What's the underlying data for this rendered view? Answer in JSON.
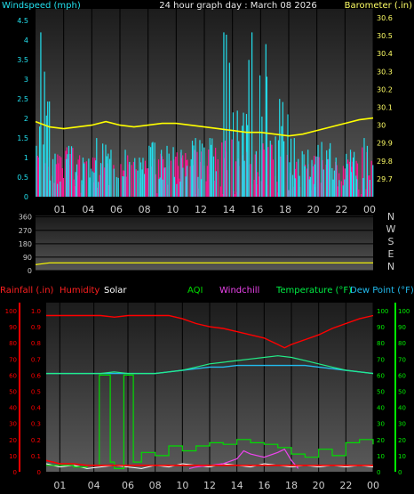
{
  "colors": {
    "background": "#000000",
    "axis": "#cccccc",
    "windspeed": "#22e0ee",
    "gust": "#ff1493",
    "barometer": "#ffff00",
    "direction": "#ffff00",
    "rainfall": "#ff0000",
    "humidity": "#ff0000",
    "solar": "#ffffff",
    "aqi": "#00dd00",
    "windchill": "#ee44ee",
    "temperature": "#22ee88",
    "dewpoint": "#22bbee",
    "rain_axis": "#ff0000",
    "temp_axis": "#00ee00"
  },
  "chart_data": [
    {
      "type": "bar",
      "title": "24 hour graph day : March 08 2026",
      "ylabel_left": "Windspeed (mph)",
      "ylabel_right": "Barometer (.in)",
      "x_ticks": [
        "01",
        "04",
        "06",
        "08",
        "10",
        "12",
        "14",
        "16",
        "18",
        "20",
        "22",
        "00"
      ],
      "y_left_ticks": [
        "0",
        "0.5",
        "1",
        "1.5",
        "2",
        "2.5",
        "3",
        "3.5",
        "4",
        "4.5"
      ],
      "y_left_range": [
        0,
        4.8
      ],
      "y_right_ticks": [
        "29.7",
        "29.8",
        "29.9",
        "30",
        "30.1",
        "30.2",
        "30.3",
        "30.4",
        "30.5",
        "30.6"
      ],
      "y_right_range": [
        29.6,
        30.65
      ],
      "barometer_points": [
        [
          0,
          30.02
        ],
        [
          1,
          29.99
        ],
        [
          2,
          29.98
        ],
        [
          3,
          29.99
        ],
        [
          4,
          30.0
        ],
        [
          5,
          30.02
        ],
        [
          6,
          30.0
        ],
        [
          7,
          29.99
        ],
        [
          8,
          30.0
        ],
        [
          9,
          30.01
        ],
        [
          10,
          30.01
        ],
        [
          11,
          30.0
        ],
        [
          12,
          29.99
        ],
        [
          13,
          29.98
        ],
        [
          14,
          29.97
        ],
        [
          15,
          29.96
        ],
        [
          16,
          29.96
        ],
        [
          17,
          29.95
        ],
        [
          18,
          29.94
        ],
        [
          19,
          29.95
        ],
        [
          20,
          29.97
        ],
        [
          21,
          29.99
        ],
        [
          22,
          30.01
        ],
        [
          23,
          30.03
        ],
        [
          24,
          30.04
        ]
      ],
      "windspeed_hourly_peak": [
        4.2,
        1.1,
        1.3,
        1.0,
        1.5,
        1.2,
        1.2,
        1.0,
        1.4,
        1.3,
        1.2,
        1.5,
        1.5,
        4.2,
        2.2,
        4.2,
        3.9,
        2.5,
        1.5,
        1.2,
        1.4,
        1.0,
        1.2,
        1.5
      ],
      "gust_hourly_peak": [
        1.1,
        1.1,
        1.3,
        1.1,
        1.2,
        1.0,
        1.1,
        1.0,
        1.2,
        1.1,
        1.2,
        1.2,
        1.3,
        1.5,
        1.2,
        1.3,
        1.4,
        1.1,
        1.0,
        1.1,
        1.2,
        1.0,
        1.2,
        1.3
      ]
    },
    {
      "type": "line",
      "y_ticks": [
        "0",
        "90",
        "180",
        "270",
        "360"
      ],
      "y_range": [
        0,
        370
      ],
      "direction_labels": [
        "N",
        "W",
        "S",
        "E",
        "N"
      ],
      "direction_points": [
        [
          0,
          40
        ],
        [
          1,
          52
        ],
        [
          24,
          52
        ]
      ]
    },
    {
      "type": "line",
      "legend": [
        "Rainfall (.in)",
        "Humidity",
        "Solar",
        "AQI",
        "Windchill",
        "Temperature (°F)",
        "Dew Point (°F)"
      ],
      "x_ticks": [
        "01",
        "04",
        "06",
        "08",
        "10",
        "12",
        "14",
        "16",
        "18",
        "20",
        "22",
        "00"
      ],
      "y_left_ticks": [
        "0",
        "10",
        "20",
        "30",
        "40",
        "50",
        "60",
        "70",
        "80",
        "90",
        "100"
      ],
      "y_rain_ticks": [
        "0",
        "0.1",
        "0.2",
        "0.3",
        "0.4",
        "0.5",
        "0.6",
        "0.7",
        "0.8",
        "0.9",
        "1.0"
      ],
      "y_right_ticks": [
        "0",
        "10",
        "20",
        "30",
        "40",
        "50",
        "60",
        "70",
        "80",
        "90",
        "100"
      ],
      "y_range": [
        0,
        105
      ],
      "humidity_points": [
        [
          0,
          97
        ],
        [
          4,
          97
        ],
        [
          5,
          96
        ],
        [
          6,
          97
        ],
        [
          9,
          97
        ],
        [
          10,
          95
        ],
        [
          11,
          92
        ],
        [
          12,
          90
        ],
        [
          13,
          89
        ],
        [
          14,
          87
        ],
        [
          15,
          85
        ],
        [
          16,
          83
        ],
        [
          17,
          79
        ],
        [
          17.5,
          77
        ],
        [
          18,
          79
        ],
        [
          19,
          82
        ],
        [
          20,
          85
        ],
        [
          21,
          89
        ],
        [
          22,
          92
        ],
        [
          23,
          95
        ],
        [
          24,
          97
        ]
      ],
      "temperature_points": [
        [
          0,
          61
        ],
        [
          4,
          61
        ],
        [
          5,
          62
        ],
        [
          6,
          61
        ],
        [
          8,
          61
        ],
        [
          9,
          62
        ],
        [
          10,
          63
        ],
        [
          11,
          65
        ],
        [
          12,
          67
        ],
        [
          13,
          68
        ],
        [
          14,
          69
        ],
        [
          15,
          70
        ],
        [
          16,
          71
        ],
        [
          17,
          72
        ],
        [
          18,
          71
        ],
        [
          19,
          69
        ],
        [
          20,
          67
        ],
        [
          21,
          65
        ],
        [
          22,
          63
        ],
        [
          23,
          62
        ],
        [
          24,
          61
        ]
      ],
      "dewpoint_points": [
        [
          0,
          61
        ],
        [
          8,
          61
        ],
        [
          9,
          62
        ],
        [
          10,
          63
        ],
        [
          11,
          64
        ],
        [
          12,
          65
        ],
        [
          13,
          65
        ],
        [
          14,
          66
        ],
        [
          15,
          66
        ],
        [
          16,
          66
        ],
        [
          17,
          66
        ],
        [
          18,
          66
        ],
        [
          19,
          66
        ],
        [
          20,
          65
        ],
        [
          21,
          64
        ],
        [
          22,
          63
        ],
        [
          23,
          62
        ],
        [
          24,
          61
        ]
      ],
      "windchill_points": [
        [
          10.5,
          2
        ],
        [
          11,
          3
        ],
        [
          12,
          4
        ],
        [
          13,
          5
        ],
        [
          14,
          8
        ],
        [
          14.5,
          13
        ],
        [
          15,
          11
        ],
        [
          16,
          9
        ],
        [
          17,
          12
        ],
        [
          17.5,
          14
        ],
        [
          18,
          7
        ],
        [
          18.5,
          2
        ]
      ],
      "aqi_points": [
        [
          0,
          4
        ],
        [
          2,
          3
        ],
        [
          3,
          4
        ],
        [
          3.8,
          4
        ],
        [
          3.9,
          60
        ],
        [
          4.6,
          60
        ],
        [
          4.7,
          6
        ],
        [
          5,
          2
        ],
        [
          5.6,
          2
        ],
        [
          5.7,
          60
        ],
        [
          6.3,
          60
        ],
        [
          6.4,
          6
        ],
        [
          7,
          12
        ],
        [
          8,
          10
        ],
        [
          9,
          16
        ],
        [
          10,
          13
        ],
        [
          11,
          16
        ],
        [
          12,
          18
        ],
        [
          13,
          17
        ],
        [
          14,
          20
        ],
        [
          15,
          18
        ],
        [
          16,
          17
        ],
        [
          17,
          15
        ],
        [
          18,
          11
        ],
        [
          19,
          9
        ],
        [
          20,
          14
        ],
        [
          21,
          10
        ],
        [
          22,
          18
        ],
        [
          23,
          20
        ],
        [
          24,
          17
        ]
      ],
      "solar_points": [
        [
          0,
          5
        ],
        [
          1,
          3
        ],
        [
          2,
          4
        ],
        [
          3,
          2
        ],
        [
          4,
          3
        ],
        [
          5,
          4
        ],
        [
          6,
          3
        ],
        [
          7,
          2
        ],
        [
          8,
          4
        ],
        [
          9,
          3
        ],
        [
          10,
          5
        ],
        [
          11,
          4
        ],
        [
          12,
          3
        ],
        [
          13,
          5
        ],
        [
          14,
          4
        ],
        [
          15,
          3
        ],
        [
          16,
          5
        ],
        [
          17,
          4
        ],
        [
          18,
          3
        ],
        [
          19,
          4
        ],
        [
          20,
          3
        ],
        [
          21,
          4
        ],
        [
          22,
          3
        ],
        [
          23,
          4
        ],
        [
          24,
          3
        ]
      ],
      "rainfall_points": [
        [
          0,
          0.07
        ],
        [
          1,
          0.05
        ],
        [
          2,
          0.05
        ],
        [
          3,
          0.04
        ],
        [
          6,
          0.04
        ],
        [
          7,
          0.04
        ],
        [
          24,
          0.04
        ]
      ]
    }
  ]
}
